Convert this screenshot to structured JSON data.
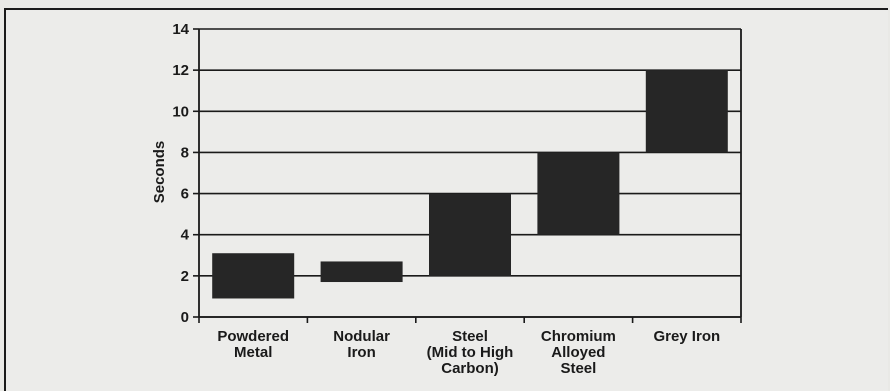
{
  "chart_data": {
    "type": "bar",
    "title": "",
    "xlabel": "",
    "ylabel": "Seconds",
    "ylim": [
      0,
      14
    ],
    "yticks": [
      0,
      2,
      4,
      6,
      8,
      10,
      12,
      14
    ],
    "grid": true,
    "categories": [
      [
        "Powdered",
        "Metal"
      ],
      [
        "Nodular",
        "Iron"
      ],
      [
        "Steel",
        "(Mid to High",
        "Carbon)"
      ],
      [
        "Chromium",
        "Alloyed",
        "Steel"
      ],
      [
        "Grey Iron"
      ]
    ],
    "ranges": [
      {
        "low": 0.9,
        "high": 3.1
      },
      {
        "low": 1.7,
        "high": 2.7
      },
      {
        "low": 2.0,
        "high": 6.0
      },
      {
        "low": 4.0,
        "high": 8.0
      },
      {
        "low": 8.0,
        "high": 12.0
      }
    ],
    "bar_color": "#262626"
  }
}
